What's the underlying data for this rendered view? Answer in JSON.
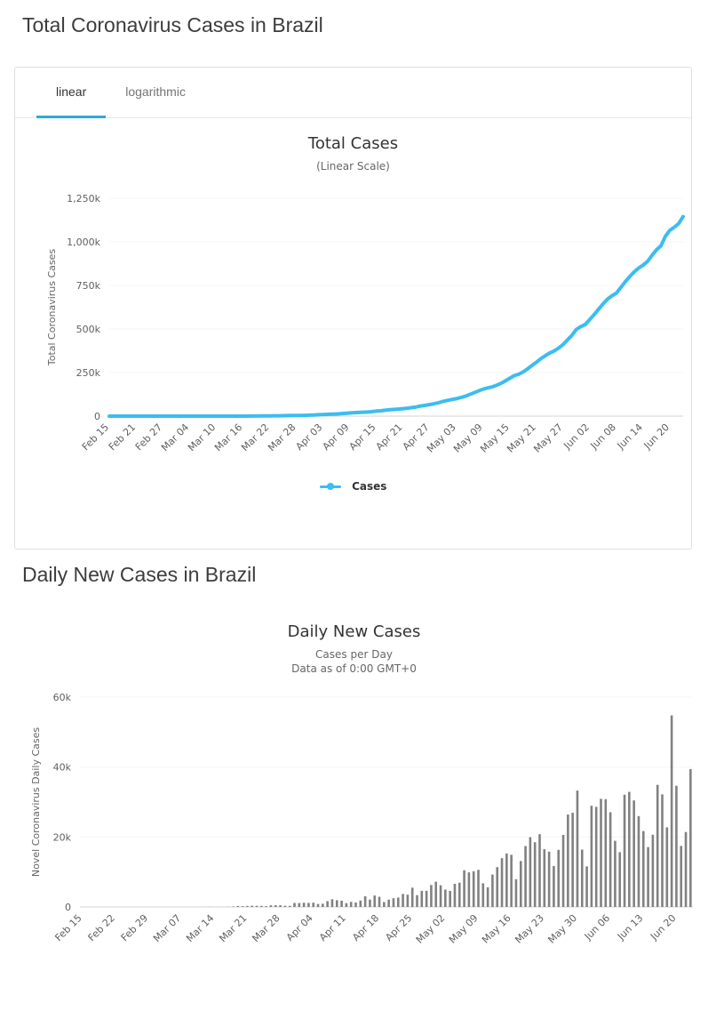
{
  "page": {
    "section1_title": "Total Coronavirus Cases in Brazil",
    "section2_title": "Daily New Cases in Brazil"
  },
  "tabs": {
    "linear": "linear",
    "logarithmic": "logarithmic"
  },
  "colors": {
    "line": "#3bbdf0",
    "tab_underline": "#2da9e0",
    "bar": "#818181",
    "grid": "#f4f4f4",
    "axis_line": "#d6d6d6"
  },
  "chart_data": [
    {
      "type": "line",
      "title": "Total Cases",
      "subtitle": "(Linear Scale)",
      "ylabel": "Total Coronavirus Cases",
      "legend": [
        "Cases"
      ],
      "ylim": [
        0,
        1250000
      ],
      "ytick_labels": [
        "0",
        "250k",
        "500k",
        "750k",
        "1,000k",
        "1,250k"
      ],
      "x_start": "Feb 15",
      "x_end": "Jun 23",
      "xtick_interval_days": 6,
      "xtick_labels": [
        "Feb 15",
        "Feb 21",
        "Feb 27",
        "Mar 04",
        "Mar 10",
        "Mar 16",
        "Mar 22",
        "Mar 28",
        "Apr 03",
        "Apr 09",
        "Apr 15",
        "Apr 21",
        "Apr 27",
        "May 03",
        "May 09",
        "May 15",
        "May 21",
        "May 27",
        "Jun 02",
        "Jun 08",
        "Jun 14",
        "Jun 20"
      ],
      "values": [
        0,
        0,
        0,
        0,
        0,
        0,
        0,
        0,
        0,
        0,
        0,
        1,
        1,
        1,
        2,
        2,
        2,
        2,
        3,
        4,
        13,
        13,
        25,
        25,
        34,
        52,
        77,
        124,
        137,
        161,
        195,
        252,
        389,
        672,
        896,
        1188,
        1540,
        1863,
        2173,
        2405,
        2887,
        3389,
        3876,
        4228,
        4551,
        5689,
        6808,
        8016,
        9162,
        10384,
        11236,
        12162,
        13823,
        16033,
        17963,
        19744,
        20833,
        22275,
        23536,
        25368,
        28426,
        30531,
        33788,
        36705,
        38094,
        40183,
        42681,
        45359,
        49094,
        52597,
        58111,
        61490,
        66103,
        70719,
        76995,
        84213,
        90422,
        95392,
        99980,
        106613,
        113548,
        124051,
        133939,
        144161,
        154772,
        161532,
        167164,
        176422,
        187807,
        201751,
        217056,
        231975,
        239913,
        253053,
        270461,
        290412,
        308920,
        329723,
        346231,
        362044,
        373731,
        390055,
        410654,
        437071,
        463999,
        497273,
        513682,
        525280,
        554216,
        582849,
        613774,
        644604,
        671679,
        690591,
        706245,
        738336,
        771249,
        801714,
        827696,
        849400,
        866510,
        887157,
        922075,
        954263,
        977028,
        1031799,
        1066465,
        1083924,
        1105356,
        1144792
      ]
    },
    {
      "type": "bar",
      "title": "Daily New Cases",
      "subtitle": "Cases per Day",
      "subtitle2": "Data as of 0:00 GMT+0",
      "ylabel": "Novel Coronavirus Daily Cases",
      "ylim": [
        0,
        60000
      ],
      "ytick_labels": [
        "0",
        "20k",
        "40k",
        "60k"
      ],
      "x_start": "Feb 15",
      "x_end": "Jun 23",
      "xtick_interval_days": 7,
      "xtick_labels": [
        "Feb 15",
        "Feb 22",
        "Feb 29",
        "Mar 07",
        "Mar 14",
        "Mar 21",
        "Mar 28",
        "Apr 04",
        "Apr 11",
        "Apr 18",
        "Apr 25",
        "May 02",
        "May 09",
        "May 16",
        "May 23",
        "May 30",
        "Jun 06",
        "Jun 13",
        "Jun 20"
      ],
      "values": [
        0,
        0,
        0,
        0,
        0,
        0,
        0,
        0,
        0,
        0,
        0,
        1,
        0,
        0,
        1,
        0,
        0,
        0,
        1,
        1,
        9,
        0,
        12,
        0,
        9,
        18,
        25,
        47,
        13,
        24,
        34,
        57,
        137,
        283,
        224,
        292,
        352,
        323,
        310,
        232,
        482,
        502,
        487,
        352,
        323,
        1138,
        1119,
        1208,
        1146,
        1222,
        852,
        926,
        1661,
        2210,
        1930,
        1781,
        1089,
        1442,
        1261,
        1832,
        3058,
        2105,
        3257,
        2917,
        1389,
        2089,
        2498,
        2678,
        3735,
        3503,
        5514,
        3379,
        4613,
        4616,
        6276,
        7218,
        6209,
        4970,
        4588,
        6633,
        6935,
        10503,
        9888,
        10222,
        10611,
        6760,
        5632,
        9258,
        11385,
        13944,
        15305,
        14919,
        7938,
        13140,
        17408,
        19951,
        18508,
        20803,
        16508,
        15813,
        11687,
        16324,
        20599,
        26417,
        26928,
        33274,
        16409,
        11598,
        28936,
        28633,
        30925,
        30830,
        27075,
        18912,
        15654,
        32091,
        32913,
        30465,
        25982,
        21704,
        17110,
        20647,
        34918,
        32188,
        22765,
        54771,
        34666,
        17459,
        21432,
        39436
      ]
    }
  ]
}
